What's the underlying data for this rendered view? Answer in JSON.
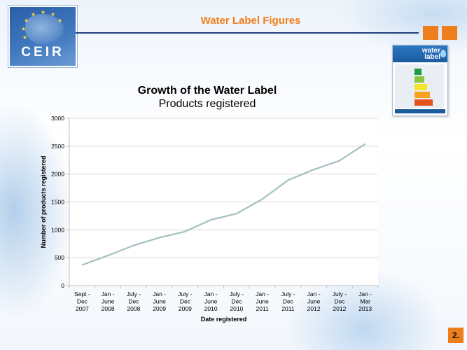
{
  "header": {
    "title": "Water Label Figures",
    "logo_text": "CEIR",
    "accent_color": "#ee7d1c",
    "rule_color": "#21407a"
  },
  "water_label_card": {
    "heading_line1": "water",
    "heading_line2": "label",
    "icon": "water-label-badge-icon"
  },
  "slide_number": "2.",
  "chart_data": {
    "type": "line",
    "title": "Growth of the Water Label",
    "subtitle": "Products registered",
    "xlabel": "Date registered",
    "ylabel": "Number of products registered",
    "categories": [
      "Sept - Dec 2007",
      "Jan - June 2008",
      "July - Dec 2008",
      "Jan - June 2009",
      "July - Dec 2009",
      "Jan - June 2010",
      "July - Dec 2010",
      "Jan - June 2011",
      "July - Dec 2011",
      "Jan - June 2012",
      "July - Dec 2012",
      "Jan - Mar 2013"
    ],
    "category_lines": [
      [
        "Sept -",
        "Dec",
        "2007"
      ],
      [
        "Jan -",
        "June",
        "2008"
      ],
      [
        "July -",
        "Dec",
        "2008"
      ],
      [
        "Jan -",
        "June",
        "2009"
      ],
      [
        "July -",
        "Dec",
        "2009"
      ],
      [
        "Jan -",
        "June",
        "2010"
      ],
      [
        "July -",
        "Dec",
        "2010"
      ],
      [
        "Jan -",
        "June",
        "2011"
      ],
      [
        "July -",
        "Dec",
        "2011"
      ],
      [
        "Jan -",
        "June",
        "2012"
      ],
      [
        "July -",
        "Dec",
        "2012"
      ],
      [
        "Jan -",
        "Mar",
        "2013"
      ]
    ],
    "values": [
      370,
      540,
      720,
      860,
      970,
      1180,
      1290,
      1550,
      1890,
      2080,
      2240,
      2540
    ],
    "ylim": [
      0,
      3000
    ],
    "yticks": [
      0,
      500,
      1000,
      1500,
      2000,
      2500,
      3000
    ],
    "grid": true,
    "legend": "none",
    "line_color": "#a5bfc0"
  }
}
